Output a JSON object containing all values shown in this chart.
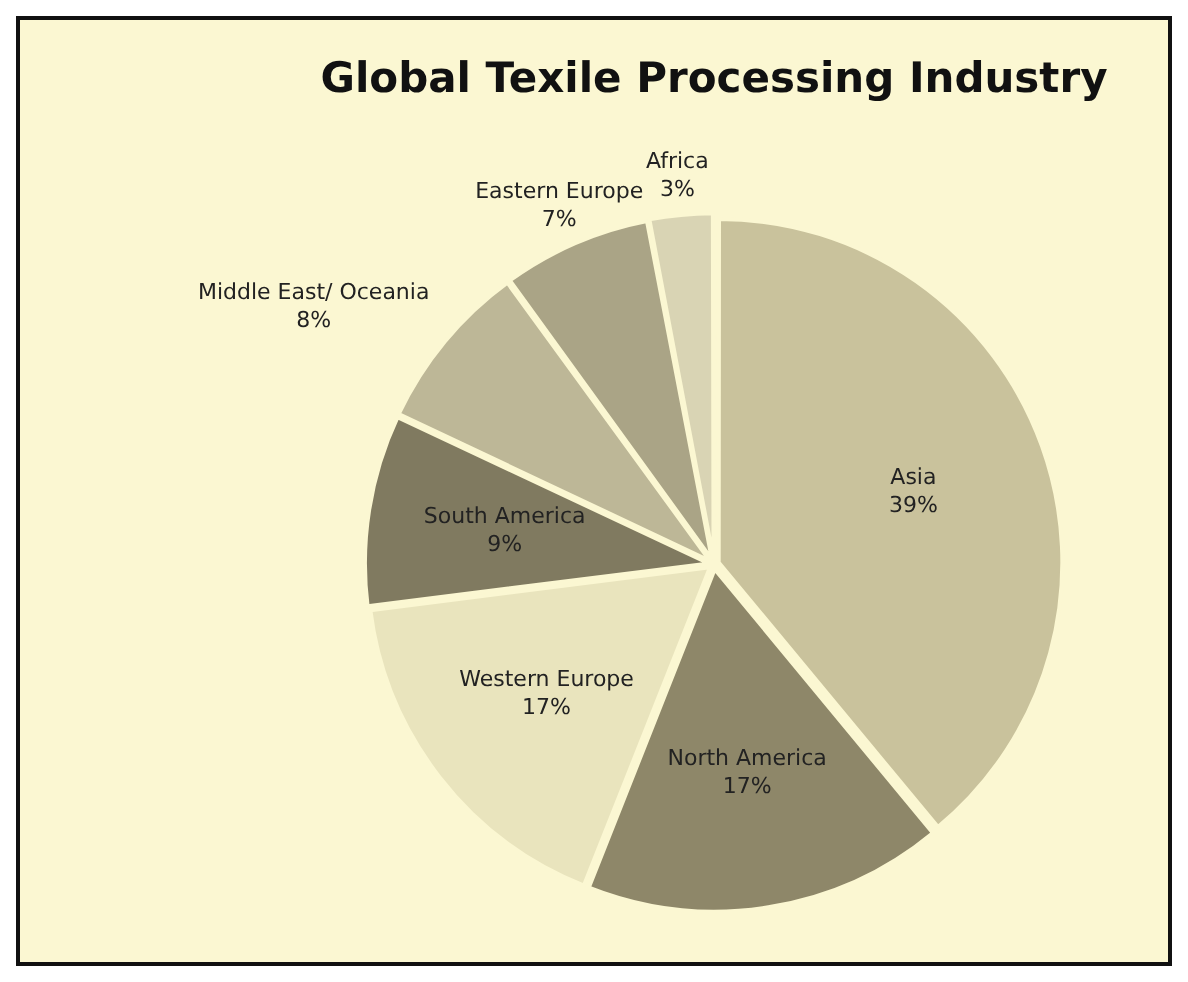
{
  "chart_data": {
    "type": "pie",
    "title": "Global Texile Processing Industry",
    "categories": [
      "Asia",
      "North America",
      "Western Europe",
      "South America",
      "Middle East/ Oceania",
      "Eastern Europe",
      "Africa"
    ],
    "values": [
      39,
      17,
      17,
      9,
      8,
      7,
      3
    ],
    "value_labels": [
      "39%",
      "17%",
      "17%",
      "9%",
      "8%",
      "7%",
      "3%"
    ],
    "colors": [
      "#c9c29c",
      "#8e8769",
      "#e9e4bd",
      "#807a60",
      "#bdb797",
      "#aaa486",
      "#d9d4b4"
    ],
    "legend": false
  }
}
